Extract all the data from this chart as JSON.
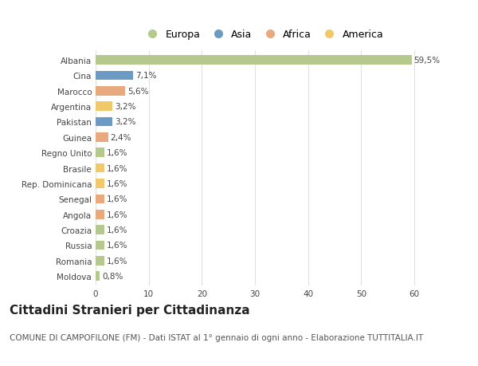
{
  "countries": [
    "Albania",
    "Cina",
    "Marocco",
    "Argentina",
    "Pakistan",
    "Guinea",
    "Regno Unito",
    "Brasile",
    "Rep. Dominicana",
    "Senegal",
    "Angola",
    "Croazia",
    "Russia",
    "Romania",
    "Moldova"
  ],
  "values": [
    59.5,
    7.1,
    5.6,
    3.2,
    3.2,
    2.4,
    1.6,
    1.6,
    1.6,
    1.6,
    1.6,
    1.6,
    1.6,
    1.6,
    0.8
  ],
  "labels": [
    "59,5%",
    "7,1%",
    "5,6%",
    "3,2%",
    "3,2%",
    "2,4%",
    "1,6%",
    "1,6%",
    "1,6%",
    "1,6%",
    "1,6%",
    "1,6%",
    "1,6%",
    "1,6%",
    "0,8%"
  ],
  "colors": [
    "#b5c98e",
    "#6b9bc3",
    "#e8a97e",
    "#f0c96b",
    "#6b9bc3",
    "#e8a97e",
    "#b5c98e",
    "#f0c96b",
    "#f0c96b",
    "#e8a97e",
    "#e8a97e",
    "#b5c98e",
    "#b5c98e",
    "#b5c98e",
    "#b5c98e"
  ],
  "legend_labels": [
    "Europa",
    "Asia",
    "Africa",
    "America"
  ],
  "legend_colors": [
    "#b5c98e",
    "#6b9bc3",
    "#e8a97e",
    "#f0c96b"
  ],
  "title": "Cittadini Stranieri per Cittadinanza",
  "subtitle": "COMUNE DI CAMPOFILONE (FM) - Dati ISTAT al 1° gennaio di ogni anno - Elaborazione TUTTITALIA.IT",
  "xlim": [
    0,
    63
  ],
  "xticks": [
    0,
    10,
    20,
    30,
    40,
    50,
    60
  ],
  "bg_color": "#ffffff",
  "plot_bg_color": "#ffffff",
  "grid_color": "#e0e0e0",
  "title_fontsize": 11,
  "subtitle_fontsize": 7.5,
  "label_fontsize": 7.5,
  "tick_fontsize": 7.5,
  "bar_height": 0.6
}
